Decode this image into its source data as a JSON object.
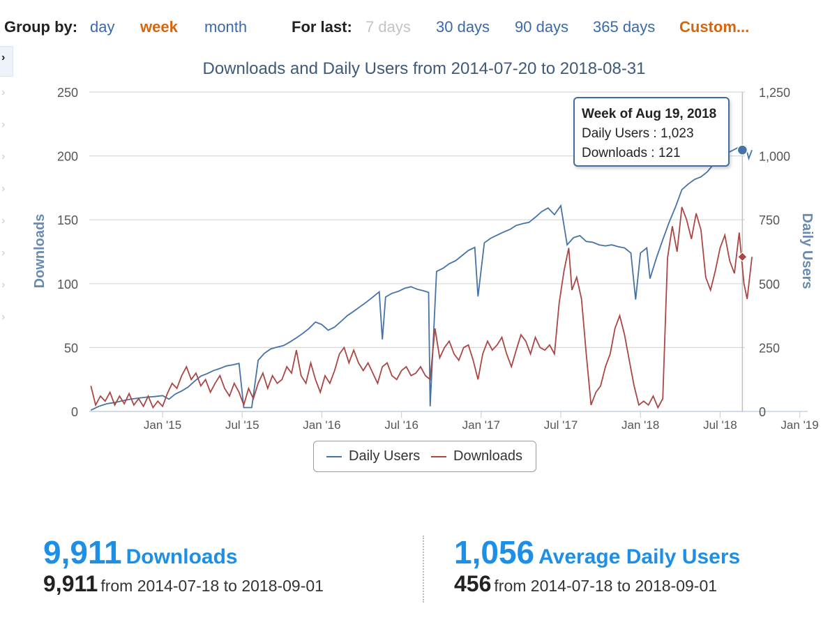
{
  "toolbar": {
    "group_by_label": "Group by:",
    "group_options": [
      {
        "label": "day",
        "state": "normal"
      },
      {
        "label": "week",
        "state": "active"
      },
      {
        "label": "month",
        "state": "normal"
      }
    ],
    "for_last_label": "For last:",
    "range_options": [
      {
        "label": "7 days",
        "state": "disabled"
      },
      {
        "label": "30 days",
        "state": "normal"
      },
      {
        "label": "90 days",
        "state": "normal"
      },
      {
        "label": "365 days",
        "state": "normal"
      },
      {
        "label": "Custom...",
        "state": "active"
      }
    ]
  },
  "sidebar": {
    "chevron_glyph": "›"
  },
  "tooltip": {
    "title": "Week of Aug 19, 2018",
    "line1": "Daily Users : 1,023",
    "line2": "Downloads : 121"
  },
  "stats": {
    "downloads": {
      "value": "9,911",
      "label": "Downloads",
      "sub_value": "9,911",
      "sub_range": "from 2014-07-18 to 2018-09-01"
    },
    "users": {
      "value": "1,056",
      "label": "Average Daily Users",
      "sub_value": "456",
      "sub_range": "from 2014-07-18 to 2018-09-01"
    }
  },
  "colors": {
    "users_line": "#4572a7",
    "downloads_line": "#aa4643",
    "accent_orange": "#d4670e",
    "link_blue": "#3a6aa8",
    "stat_blue": "#1e8fe6"
  },
  "chart_data": {
    "type": "line",
    "title": "Downloads and Daily Users from 2014-07-20 to 2018-08-31",
    "ylabel_left": "Downloads",
    "ylabel_right": "Daily Users",
    "ylim_left": [
      0,
      250
    ],
    "ylim_right": [
      0,
      1250
    ],
    "yticks_left": [
      0,
      50,
      100,
      150,
      200,
      250
    ],
    "yticks_right": [
      0,
      250,
      500,
      750,
      1000,
      1250
    ],
    "ytick_labels_left": [
      "0",
      "50",
      "100",
      "150",
      "200",
      "250"
    ],
    "ytick_labels_right": [
      "0",
      "250",
      "500",
      "750",
      "1,000",
      "1,250"
    ],
    "xlim": [
      2014.54,
      2019.05
    ],
    "xticks": [
      2015.0,
      2015.5,
      2016.0,
      2016.5,
      2017.0,
      2017.5,
      2018.0,
      2018.5,
      2019.0
    ],
    "xtick_labels": [
      "Jan '15",
      "Jul '15",
      "Jan '16",
      "Jul '16",
      "Jan '17",
      "Jul '17",
      "Jan '18",
      "Jul '18",
      "Jan '19"
    ],
    "legend": [
      "Daily Users",
      "Downloads"
    ],
    "legend_position": "bottom-center",
    "highlight": {
      "x": 2018.64,
      "daily_users": 1023,
      "downloads": 121
    },
    "series": [
      {
        "name": "Daily Users",
        "axis": "right",
        "color": "#4572a7",
        "points": [
          [
            2014.55,
            5
          ],
          [
            2014.6,
            20
          ],
          [
            2014.65,
            30
          ],
          [
            2014.7,
            35
          ],
          [
            2014.75,
            42
          ],
          [
            2014.8,
            48
          ],
          [
            2014.85,
            52
          ],
          [
            2014.9,
            56
          ],
          [
            2014.95,
            58
          ],
          [
            2015.0,
            62
          ],
          [
            2015.04,
            48
          ],
          [
            2015.08,
            68
          ],
          [
            2015.12,
            80
          ],
          [
            2015.16,
            95
          ],
          [
            2015.2,
            118
          ],
          [
            2015.24,
            138
          ],
          [
            2015.28,
            148
          ],
          [
            2015.32,
            160
          ],
          [
            2015.36,
            168
          ],
          [
            2015.4,
            178
          ],
          [
            2015.44,
            182
          ],
          [
            2015.48,
            188
          ],
          [
            2015.51,
            15
          ],
          [
            2015.56,
            15
          ],
          [
            2015.6,
            200
          ],
          [
            2015.64,
            228
          ],
          [
            2015.68,
            245
          ],
          [
            2015.72,
            252
          ],
          [
            2015.76,
            258
          ],
          [
            2015.8,
            272
          ],
          [
            2015.84,
            288
          ],
          [
            2015.88,
            305
          ],
          [
            2015.92,
            325
          ],
          [
            2015.96,
            350
          ],
          [
            2016.0,
            340
          ],
          [
            2016.04,
            318
          ],
          [
            2016.08,
            330
          ],
          [
            2016.12,
            352
          ],
          [
            2016.16,
            375
          ],
          [
            2016.2,
            392
          ],
          [
            2016.24,
            410
          ],
          [
            2016.28,
            428
          ],
          [
            2016.32,
            448
          ],
          [
            2016.36,
            468
          ],
          [
            2016.38,
            282
          ],
          [
            2016.4,
            448
          ],
          [
            2016.44,
            462
          ],
          [
            2016.48,
            470
          ],
          [
            2016.52,
            482
          ],
          [
            2016.56,
            488
          ],
          [
            2016.6,
            478
          ],
          [
            2016.64,
            472
          ],
          [
            2016.67,
            466
          ],
          [
            2016.68,
            20
          ],
          [
            2016.72,
            548
          ],
          [
            2016.76,
            560
          ],
          [
            2016.8,
            578
          ],
          [
            2016.84,
            590
          ],
          [
            2016.88,
            610
          ],
          [
            2016.92,
            630
          ],
          [
            2016.96,
            642
          ],
          [
            2016.98,
            450
          ],
          [
            2017.02,
            660
          ],
          [
            2017.06,
            678
          ],
          [
            2017.1,
            690
          ],
          [
            2017.14,
            702
          ],
          [
            2017.18,
            712
          ],
          [
            2017.22,
            728
          ],
          [
            2017.26,
            735
          ],
          [
            2017.3,
            740
          ],
          [
            2017.34,
            760
          ],
          [
            2017.38,
            782
          ],
          [
            2017.42,
            796
          ],
          [
            2017.46,
            770
          ],
          [
            2017.5,
            805
          ],
          [
            2017.54,
            652
          ],
          [
            2017.58,
            680
          ],
          [
            2017.62,
            688
          ],
          [
            2017.66,
            665
          ],
          [
            2017.7,
            662
          ],
          [
            2017.74,
            652
          ],
          [
            2017.78,
            648
          ],
          [
            2017.82,
            652
          ],
          [
            2017.86,
            645
          ],
          [
            2017.9,
            640
          ],
          [
            2017.94,
            620
          ],
          [
            2017.97,
            438
          ],
          [
            2018.0,
            620
          ],
          [
            2018.04,
            640
          ],
          [
            2018.06,
            520
          ],
          [
            2018.1,
            600
          ],
          [
            2018.14,
            672
          ],
          [
            2018.18,
            740
          ],
          [
            2018.22,
            800
          ],
          [
            2018.26,
            868
          ],
          [
            2018.3,
            890
          ],
          [
            2018.34,
            908
          ],
          [
            2018.38,
            918
          ],
          [
            2018.42,
            938
          ],
          [
            2018.46,
            968
          ],
          [
            2018.5,
            1000
          ],
          [
            2018.54,
            1010
          ],
          [
            2018.58,
            1022
          ],
          [
            2018.62,
            1035
          ],
          [
            2018.66,
            1038
          ],
          [
            2018.68,
            990
          ],
          [
            2018.7,
            1023
          ]
        ]
      },
      {
        "name": "Downloads",
        "axis": "left",
        "color": "#aa4643",
        "points": [
          [
            2014.55,
            20
          ],
          [
            2014.58,
            5
          ],
          [
            2014.61,
            12
          ],
          [
            2014.64,
            8
          ],
          [
            2014.67,
            15
          ],
          [
            2014.7,
            5
          ],
          [
            2014.73,
            12
          ],
          [
            2014.76,
            6
          ],
          [
            2014.79,
            14
          ],
          [
            2014.82,
            5
          ],
          [
            2014.85,
            10
          ],
          [
            2014.88,
            4
          ],
          [
            2014.91,
            12
          ],
          [
            2014.94,
            3
          ],
          [
            2014.97,
            8
          ],
          [
            2015.0,
            4
          ],
          [
            2015.03,
            14
          ],
          [
            2015.06,
            22
          ],
          [
            2015.09,
            18
          ],
          [
            2015.12,
            28
          ],
          [
            2015.15,
            35
          ],
          [
            2015.18,
            25
          ],
          [
            2015.21,
            30
          ],
          [
            2015.24,
            20
          ],
          [
            2015.27,
            25
          ],
          [
            2015.3,
            15
          ],
          [
            2015.33,
            22
          ],
          [
            2015.36,
            28
          ],
          [
            2015.39,
            18
          ],
          [
            2015.42,
            12
          ],
          [
            2015.45,
            22
          ],
          [
            2015.48,
            15
          ],
          [
            2015.51,
            5
          ],
          [
            2015.54,
            18
          ],
          [
            2015.57,
            10
          ],
          [
            2015.6,
            22
          ],
          [
            2015.63,
            30
          ],
          [
            2015.66,
            18
          ],
          [
            2015.69,
            28
          ],
          [
            2015.72,
            22
          ],
          [
            2015.75,
            25
          ],
          [
            2015.78,
            35
          ],
          [
            2015.81,
            30
          ],
          [
            2015.84,
            48
          ],
          [
            2015.87,
            28
          ],
          [
            2015.9,
            22
          ],
          [
            2015.93,
            38
          ],
          [
            2015.96,
            25
          ],
          [
            2015.99,
            15
          ],
          [
            2016.02,
            28
          ],
          [
            2016.05,
            22
          ],
          [
            2016.08,
            32
          ],
          [
            2016.11,
            45
          ],
          [
            2016.14,
            50
          ],
          [
            2016.17,
            38
          ],
          [
            2016.2,
            48
          ],
          [
            2016.23,
            38
          ],
          [
            2016.26,
            32
          ],
          [
            2016.29,
            38
          ],
          [
            2016.32,
            30
          ],
          [
            2016.35,
            22
          ],
          [
            2016.38,
            35
          ],
          [
            2016.41,
            38
          ],
          [
            2016.44,
            28
          ],
          [
            2016.47,
            25
          ],
          [
            2016.5,
            32
          ],
          [
            2016.53,
            35
          ],
          [
            2016.56,
            28
          ],
          [
            2016.59,
            30
          ],
          [
            2016.62,
            35
          ],
          [
            2016.65,
            28
          ],
          [
            2016.68,
            25
          ],
          [
            2016.71,
            65
          ],
          [
            2016.74,
            42
          ],
          [
            2016.77,
            50
          ],
          [
            2016.8,
            55
          ],
          [
            2016.83,
            45
          ],
          [
            2016.86,
            40
          ],
          [
            2016.89,
            50
          ],
          [
            2016.92,
            52
          ],
          [
            2016.95,
            40
          ],
          [
            2016.98,
            25
          ],
          [
            2017.01,
            45
          ],
          [
            2017.04,
            55
          ],
          [
            2017.07,
            48
          ],
          [
            2017.1,
            52
          ],
          [
            2017.13,
            58
          ],
          [
            2017.16,
            45
          ],
          [
            2017.19,
            35
          ],
          [
            2017.22,
            48
          ],
          [
            2017.25,
            60
          ],
          [
            2017.28,
            55
          ],
          [
            2017.31,
            45
          ],
          [
            2017.34,
            58
          ],
          [
            2017.37,
            50
          ],
          [
            2017.4,
            48
          ],
          [
            2017.43,
            52
          ],
          [
            2017.46,
            45
          ],
          [
            2017.49,
            85
          ],
          [
            2017.52,
            110
          ],
          [
            2017.55,
            128
          ],
          [
            2017.57,
            95
          ],
          [
            2017.6,
            105
          ],
          [
            2017.63,
            88
          ],
          [
            2017.66,
            45
          ],
          [
            2017.69,
            5
          ],
          [
            2017.72,
            15
          ],
          [
            2017.75,
            20
          ],
          [
            2017.78,
            35
          ],
          [
            2017.81,
            45
          ],
          [
            2017.84,
            65
          ],
          [
            2017.87,
            75
          ],
          [
            2017.9,
            60
          ],
          [
            2017.93,
            40
          ],
          [
            2017.96,
            20
          ],
          [
            2017.99,
            5
          ],
          [
            2018.02,
            8
          ],
          [
            2018.05,
            5
          ],
          [
            2018.08,
            12
          ],
          [
            2018.11,
            3
          ],
          [
            2018.14,
            10
          ],
          [
            2018.17,
            120
          ],
          [
            2018.2,
            145
          ],
          [
            2018.23,
            125
          ],
          [
            2018.26,
            160
          ],
          [
            2018.29,
            150
          ],
          [
            2018.32,
            135
          ],
          [
            2018.35,
            155
          ],
          [
            2018.38,
            142
          ],
          [
            2018.41,
            105
          ],
          [
            2018.44,
            95
          ],
          [
            2018.47,
            110
          ],
          [
            2018.5,
            128
          ],
          [
            2018.53,
            138
          ],
          [
            2018.56,
            118
          ],
          [
            2018.59,
            108
          ],
          [
            2018.62,
            140
          ],
          [
            2018.65,
            100
          ],
          [
            2018.67,
            88
          ],
          [
            2018.7,
            121
          ]
        ]
      }
    ]
  }
}
